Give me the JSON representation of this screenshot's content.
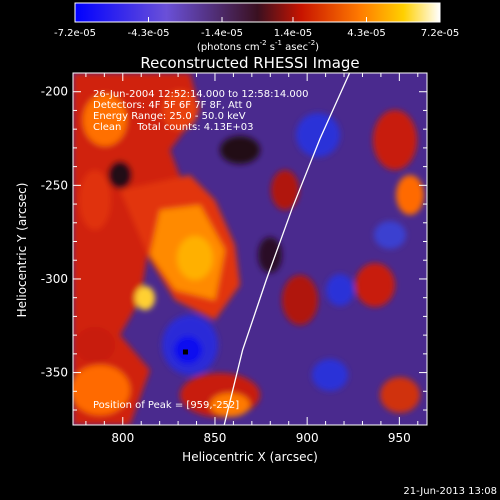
{
  "colorbar": {
    "tick_labels": [
      "-7.2e-05",
      "-4.3e-05",
      "-1.4e-05",
      "1.4e-05",
      "4.3e-05",
      "7.2e-05"
    ],
    "unit_label": "(photons cm",
    "unit_sup1": "-2",
    "unit_mid": " s",
    "unit_sup2": "-1",
    "unit_end": " asec",
    "unit_sup3": "-2",
    "unit_close": ")",
    "range": [
      -7.2e-05,
      7.2e-05
    ]
  },
  "chart_data": {
    "type": "heatmap",
    "title": "Reconstructed RHESSI Image",
    "xlabel": "Heliocentric X (arcsec)",
    "ylabel": "Heliocentric Y (arcsec)",
    "xlim": [
      773,
      965
    ],
    "ylim": [
      -378,
      -190
    ],
    "x_ticks": [
      800,
      850,
      900,
      950
    ],
    "y_ticks": [
      -200,
      -250,
      -300,
      -350
    ],
    "x_tick_labels": [
      "800",
      "850",
      "900",
      "950"
    ],
    "y_tick_labels": [
      "-200",
      "-250",
      "-300",
      "-350"
    ],
    "annotations": [
      "26-Jun-2004 12:52:14.000 to 12:58:14.000",
      "Detectors: 4F 5F 6F 7F 8F, Att 0",
      "Energy Range: 25.0 - 50.0 keV",
      "Clean     Total counts: 4.13E+03"
    ],
    "peak_label": "Position of Peak = [959,-252]",
    "peak_position": [
      959,
      -252
    ],
    "limb_curve": [
      [
        923,
        -190
      ],
      [
        907,
        -225
      ],
      [
        892,
        -262
      ],
      [
        878,
        -300
      ],
      [
        865,
        -338
      ],
      [
        855,
        -378
      ]
    ],
    "marker_point": [
      834,
      -339
    ],
    "colors": {
      "limb": "#ffffff",
      "marker": "#000000"
    }
  },
  "footer": {
    "date": "21-Jun-2013 13:08"
  }
}
